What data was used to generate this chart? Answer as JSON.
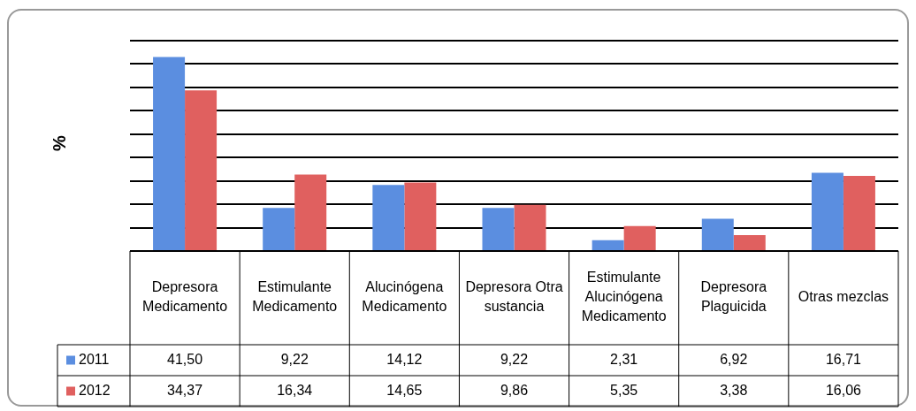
{
  "chart_data": {
    "type": "bar",
    "ylabel": "%",
    "categories": [
      "Depresora Medicamento",
      "Estimulante Medicamento",
      "Alucinógena Medicamento",
      "Depresora Otra sustancia",
      "Estimulante Alucinógena Medicamento",
      "Depresora Plaguicida",
      "Otras mezclas"
    ],
    "series": [
      {
        "name": "2011",
        "color": "#5b8ee0",
        "values": [
          41.5,
          9.22,
          14.12,
          9.22,
          2.31,
          6.92,
          16.71
        ],
        "value_labels": [
          "41,50",
          "9,22",
          "14,12",
          "9,22",
          "2,31",
          "6,92",
          "16,71"
        ]
      },
      {
        "name": "2012",
        "color": "#e0605f",
        "values": [
          34.37,
          16.34,
          14.65,
          9.86,
          5.35,
          3.38,
          16.06
        ],
        "value_labels": [
          "34,37",
          "16,34",
          "14,65",
          "9,86",
          "5,35",
          "3,38",
          "16,06"
        ]
      }
    ],
    "tick_labels": "x",
    "grid": "y",
    "legend": "bottom left"
  }
}
